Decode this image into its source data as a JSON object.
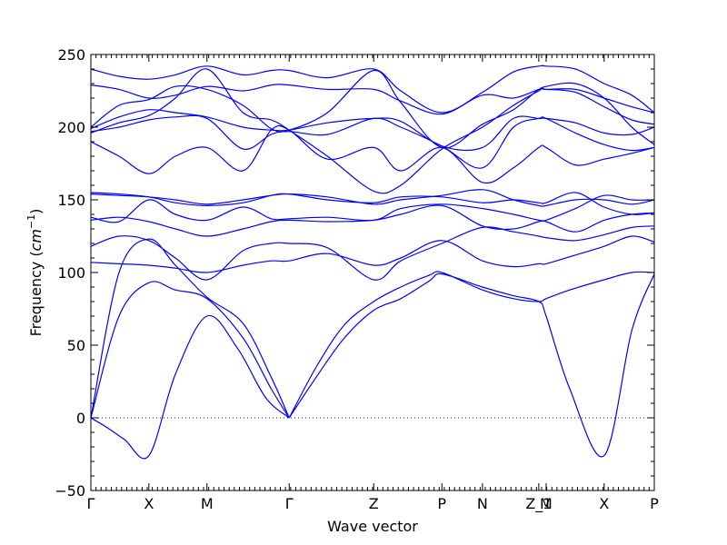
{
  "chart_data": {
    "type": "line",
    "title": "",
    "xlabel": "Wave vector",
    "ylabel_prefix": "Frequency (",
    "ylabel_unit": "cm",
    "ylabel_exp": "−1",
    "ylabel_suffix": ")",
    "ylim": [
      -50,
      250
    ],
    "yticks": [
      "−50",
      "0",
      "50",
      "100",
      "150",
      "200",
      "250"
    ],
    "ytick_values": [
      -50,
      0,
      50,
      100,
      150,
      200,
      250
    ],
    "grid": false,
    "zero_line": true,
    "line_color": "#0000ff",
    "xlim": [
      0,
      10
    ],
    "k_points": [
      {
        "label": "Γ",
        "x": 0
      },
      {
        "label": "X",
        "x": 1.03
      },
      {
        "label": "M",
        "x": 2.06
      },
      {
        "label": "Γ",
        "x": 3.52
      },
      {
        "label": "Z",
        "x": 5.02
      },
      {
        "label": "P",
        "x": 6.23
      },
      {
        "label": "N",
        "x": 6.95
      },
      {
        "label": "Z_1",
        "x": 7.95
      },
      {
        "label": "M",
        "x": 8.08
      },
      {
        "label": "X",
        "x": 9.11
      },
      {
        "label": "P",
        "x": 10
      }
    ],
    "series": [
      {
        "x": [
          0,
          0.3,
          0.6,
          1.03,
          1.5,
          2.06,
          2.6,
          3.1,
          3.52
        ],
        "values": [
          0,
          -7,
          -15,
          -26,
          30,
          70,
          48,
          14,
          0
        ]
      },
      {
        "x": [
          0,
          0.5,
          1.03,
          1.5,
          2.06,
          2.7,
          3.2,
          3.52
        ],
        "values": [
          0,
          70,
          93,
          88,
          82,
          55,
          20,
          0
        ]
      },
      {
        "x": [
          0,
          0.5,
          1.03,
          1.5,
          2.06,
          2.7,
          3.2,
          3.52
        ],
        "values": [
          0,
          100,
          123,
          105,
          83,
          65,
          28,
          0
        ]
      },
      {
        "x": [
          3.52,
          4.0,
          4.5,
          5.02,
          5.5,
          6.0,
          6.23,
          6.95,
          7.5,
          7.95,
          8.08,
          8.5,
          9.11,
          9.6,
          10
        ],
        "values": [
          0,
          28,
          55,
          74,
          82,
          94,
          99,
          90,
          84,
          80,
          70,
          20,
          -26,
          60,
          99
        ]
      },
      {
        "x": [
          3.52,
          4.0,
          4.5,
          5.02,
          5.5,
          6.0,
          6.23,
          6.95,
          7.5,
          7.95,
          8.08,
          8.5,
          9.11,
          9.6,
          10
        ],
        "values": [
          0,
          35,
          64,
          80,
          90,
          98,
          100,
          88,
          82,
          80,
          82,
          88,
          95,
          100,
          100
        ]
      },
      {
        "x": [
          0,
          0.5,
          1.03,
          1.5,
          2.06,
          2.7,
          3.2,
          3.52,
          4.2,
          5.02,
          5.5,
          6.23,
          6.95,
          7.5,
          7.95,
          8.08,
          8.6,
          9.11,
          9.6,
          10
        ],
        "values": [
          107,
          106,
          105,
          103,
          100,
          105,
          108,
          108,
          113,
          105,
          110,
          122,
          108,
          104,
          106,
          106,
          112,
          118,
          125,
          121
        ]
      },
      {
        "x": [
          0,
          0.5,
          1.03,
          1.5,
          2.06,
          2.7,
          3.2,
          3.52,
          4.2,
          5.02,
          5.5,
          6.23,
          6.95,
          7.5,
          7.95,
          8.08,
          8.6,
          9.11,
          9.6,
          10
        ],
        "values": [
          118,
          125,
          122,
          110,
          95,
          115,
          120,
          120,
          117,
          95,
          108,
          120,
          131,
          128,
          125,
          124,
          122,
          126,
          131,
          132
        ]
      },
      {
        "x": [
          0,
          0.5,
          1.03,
          1.5,
          2.06,
          2.7,
          3.2,
          3.52,
          4.2,
          5.02,
          5.5,
          6.23,
          6.95,
          7.5,
          7.95,
          8.08,
          8.6,
          9.11,
          9.6,
          10
        ],
        "values": [
          136,
          138,
          135,
          130,
          125,
          130,
          135,
          136,
          135,
          136,
          140,
          146,
          132,
          130,
          135,
          135,
          128,
          136,
          140,
          141
        ]
      },
      {
        "x": [
          0,
          0.5,
          1.03,
          1.5,
          2.06,
          2.7,
          3.2,
          3.52,
          4.2,
          5.02,
          5.5,
          6.23,
          6.95,
          7.5,
          7.95,
          8.08,
          8.6,
          9.11,
          9.6,
          10
        ],
        "values": [
          138,
          135,
          150,
          140,
          136,
          145,
          137,
          137,
          138,
          136,
          144,
          147,
          144,
          140,
          136,
          136,
          144,
          153,
          150,
          150
        ]
      },
      {
        "x": [
          0,
          0.5,
          1.03,
          1.5,
          2.06,
          2.7,
          3.2,
          3.52,
          4.2,
          5.02,
          5.5,
          6.23,
          6.95,
          7.5,
          7.95,
          8.08,
          8.6,
          9.11,
          9.6,
          10
        ],
        "values": [
          154,
          153,
          152,
          150,
          147,
          150,
          153,
          154,
          152,
          147,
          150,
          153,
          157,
          150,
          146,
          146,
          150,
          150,
          147,
          150
        ]
      },
      {
        "x": [
          0,
          0.5,
          1.03,
          1.5,
          2.06,
          2.7,
          3.2,
          3.52,
          4.2,
          5.02,
          5.5,
          6.23,
          6.95,
          7.5,
          7.95,
          8.08,
          8.6,
          9.11,
          9.6,
          10
        ],
        "values": [
          155,
          154,
          152,
          148,
          146,
          148,
          153,
          154,
          150,
          148,
          152,
          152,
          148,
          150,
          148,
          148,
          155,
          145,
          140,
          141
        ]
      },
      {
        "x": [
          0,
          0.5,
          1.03,
          1.5,
          2.06,
          2.7,
          3.2,
          3.52,
          4.2,
          5.02,
          5.5,
          6.23,
          6.95,
          7.5,
          7.95,
          8.08,
          8.6,
          9.11,
          9.6,
          10
        ],
        "values": [
          190,
          180,
          168,
          180,
          186,
          170,
          198,
          198,
          178,
          186,
          170,
          186,
          162,
          172,
          186,
          186,
          174,
          178,
          182,
          186
        ]
      },
      {
        "x": [
          0,
          0.5,
          1.03,
          1.5,
          2.06,
          2.7,
          3.2,
          3.52,
          4.2,
          5.02,
          5.5,
          6.23,
          6.95,
          7.5,
          7.95,
          8.08,
          8.6,
          9.11,
          9.6,
          10
        ],
        "values": [
          197,
          200,
          205,
          207,
          206,
          185,
          195,
          197,
          195,
          206,
          200,
          187,
          172,
          200,
          206,
          206,
          196,
          188,
          184,
          186
        ]
      },
      {
        "x": [
          0,
          0.5,
          1.03,
          1.5,
          2.06,
          2.7,
          3.2,
          3.52,
          4.2,
          5.02,
          5.5,
          6.23,
          6.95,
          7.5,
          7.95,
          8.08,
          8.6,
          9.11,
          9.6,
          10
        ],
        "values": [
          199,
          207,
          212,
          210,
          207,
          200,
          198,
          198,
          203,
          206,
          204,
          187,
          186,
          206,
          206,
          206,
          203,
          196,
          195,
          200
        ]
      },
      {
        "x": [
          0,
          0.5,
          1.03,
          1.5,
          2.06,
          2.7,
          3.2,
          3.52,
          4.2,
          5.02,
          5.5,
          6.23,
          6.95,
          7.5,
          7.95,
          8.08,
          8.6,
          9.11,
          9.6,
          10
        ],
        "values": [
          200,
          215,
          219,
          228,
          226,
          215,
          199,
          198,
          210,
          239,
          217,
          186,
          202,
          212,
          226,
          226,
          224,
          214,
          205,
          202
        ]
      },
      {
        "x": [
          0,
          0.5,
          1.03,
          1.5,
          2.06,
          2.7,
          3.2,
          3.52,
          4.2,
          5.02,
          5.5,
          6.23,
          6.95,
          7.5,
          7.95,
          8.08,
          8.6,
          9.11,
          9.6,
          10
        ],
        "values": [
          229,
          226,
          220,
          222,
          228,
          225,
          229,
          229,
          226,
          226,
          218,
          209,
          222,
          220,
          226,
          226,
          226,
          220,
          214,
          210
        ]
      },
      {
        "x": [
          0,
          0.5,
          1.03,
          1.5,
          2.06,
          2.7,
          3.2,
          3.52,
          4.2,
          5.02,
          5.5,
          6.23,
          6.95,
          7.5,
          7.95,
          8.08,
          8.6,
          9.11,
          9.6,
          10
        ],
        "values": [
          240,
          235,
          233,
          236,
          242,
          236,
          239,
          239,
          234,
          240,
          225,
          210,
          224,
          238,
          242,
          242,
          240,
          230,
          222,
          210
        ]
      },
      {
        "x": [
          0,
          0.5,
          1.03,
          1.5,
          2.06,
          2.7,
          3.2,
          3.52,
          4.2,
          5.02,
          5.5,
          6.23,
          6.95,
          7.5,
          7.95,
          8.08,
          8.6,
          9.11,
          9.6,
          10
        ],
        "values": [
          196,
          203,
          208,
          220,
          240,
          210,
          205,
          198,
          180,
          156,
          160,
          185,
          200,
          215,
          225,
          228,
          230,
          220,
          200,
          188
        ]
      }
    ]
  }
}
